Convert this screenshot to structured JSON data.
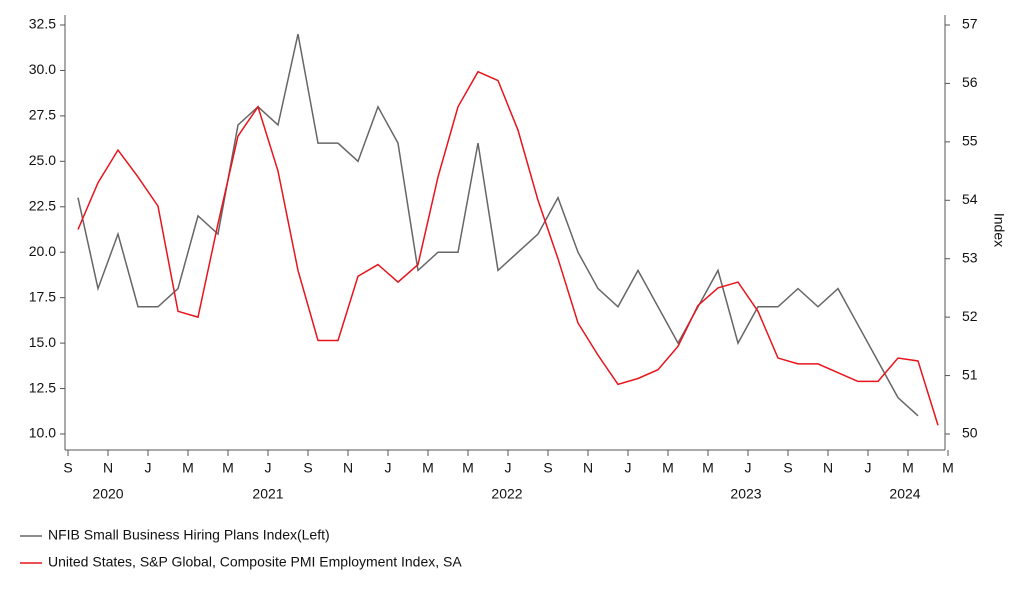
{
  "chart_data": {
    "type": "line",
    "categories": [
      "S",
      null,
      "N",
      null,
      "J",
      null,
      "M",
      null,
      "M",
      null,
      "J",
      null,
      "S",
      null,
      "N",
      null,
      "J",
      null,
      "M",
      null,
      "M",
      null,
      "J",
      null,
      "S",
      null,
      "N",
      null,
      "J",
      null,
      "M",
      null,
      "M",
      null,
      "J",
      null,
      "S",
      null,
      "N",
      null,
      "J",
      null,
      "M",
      null,
      "M"
    ],
    "years": [
      "2020",
      "2021",
      "2022",
      "2023",
      "2024"
    ],
    "y2label": "Index",
    "ylim": [
      10,
      32.5
    ],
    "yticks": [
      {
        "value": 10,
        "label": "10.0"
      },
      12.5,
      {
        "value": 15,
        "label": "15.0"
      },
      17.5,
      {
        "value": 20,
        "label": "20.0"
      },
      22.5,
      {
        "value": 25,
        "label": "25.0"
      },
      27.5,
      {
        "value": 30,
        "label": "30.0"
      },
      32.5
    ],
    "y2lim": [
      50,
      57
    ],
    "y2ticks": [
      50,
      51,
      52,
      53,
      54,
      55,
      56,
      57
    ],
    "series": [
      {
        "name": "NFIB Small Business Hiring Plans Index(Left)",
        "color": "#666666",
        "values": [
          23,
          18,
          21,
          17,
          17,
          18,
          22,
          21,
          27,
          28,
          27,
          32,
          26,
          26,
          25,
          28,
          26,
          19,
          20,
          20,
          26,
          19,
          20,
          21,
          23,
          20,
          18,
          17,
          19,
          17,
          15,
          17,
          19,
          15,
          17,
          17,
          18,
          17,
          18,
          16,
          14,
          12,
          11,
          null,
          null
        ]
      },
      {
        "name": "United States, S&P Global, Composite PMI Employment Index, SA",
        "color": "#e8141c",
        "axis": "y2",
        "values": [
          53.5,
          54.3,
          54.86,
          54.4,
          53.9,
          52.1,
          52.0,
          53.6,
          55.1,
          55.6,
          54.5,
          52.8,
          51.6,
          51.6,
          52.7,
          52.9,
          52.6,
          52.9,
          54.4,
          55.6,
          56.2,
          56.05,
          55.2,
          54.0,
          53.0,
          51.9,
          51.35,
          50.85,
          50.95,
          51.1,
          51.5,
          52.2,
          52.5,
          52.6,
          52.1,
          51.3,
          51.2,
          51.2,
          51.05,
          50.9,
          50.9,
          51.3,
          51.25,
          50.15,
          null
        ]
      }
    ]
  }
}
